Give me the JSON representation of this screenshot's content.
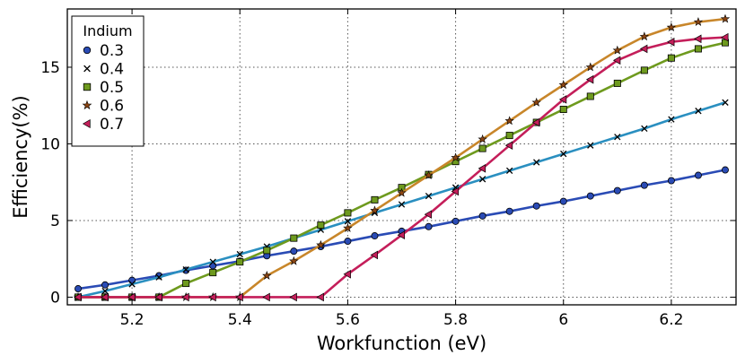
{
  "chart_data": {
    "type": "line",
    "title": "",
    "xlabel": "Workfunction (eV)",
    "ylabel": "Efficiency(%)",
    "xlim": [
      5.08,
      6.32
    ],
    "ylim": [
      -0.5,
      18.8
    ],
    "xticks": [
      5.2,
      5.4,
      5.6,
      5.8,
      6.0,
      6.2
    ],
    "xtick_labels": [
      "5.2",
      "5.4",
      "5.6",
      "5.8",
      "6",
      "6.2"
    ],
    "yticks": [
      0,
      5,
      10,
      15
    ],
    "ytick_labels": [
      "0",
      "5",
      "10",
      "15"
    ],
    "grid": true,
    "legend": {
      "title": "Indium",
      "placement": "top-left"
    },
    "x": [
      5.1,
      5.15,
      5.2,
      5.25,
      5.3,
      5.35,
      5.4,
      5.45,
      5.5,
      5.55,
      5.6,
      5.65,
      5.7,
      5.75,
      5.8,
      5.85,
      5.9,
      5.95,
      6.0,
      6.05,
      6.1,
      6.15,
      6.2,
      6.25,
      6.3
    ],
    "series": [
      {
        "name": "0.3",
        "marker": "circle",
        "line_color": "#2a4bb5",
        "marker_color": "#2a4bb5",
        "values": [
          0.55,
          0.8,
          1.1,
          1.4,
          1.75,
          2.05,
          2.35,
          2.7,
          3.0,
          3.3,
          3.65,
          4.0,
          4.3,
          4.6,
          4.95,
          5.3,
          5.6,
          5.95,
          6.25,
          6.6,
          6.95,
          7.3,
          7.6,
          7.95,
          8.3
        ]
      },
      {
        "name": "0.4",
        "marker": "x",
        "line_color": "#2a8fc0",
        "marker_color": "#000000",
        "values": [
          0.0,
          0.4,
          0.85,
          1.3,
          1.8,
          2.3,
          2.8,
          3.3,
          3.85,
          4.4,
          4.95,
          5.5,
          6.05,
          6.6,
          7.15,
          7.7,
          8.25,
          8.8,
          9.35,
          9.9,
          10.45,
          11.0,
          11.6,
          12.15,
          12.7
        ]
      },
      {
        "name": "0.5",
        "marker": "square",
        "line_color": "#6e9a1e",
        "marker_color": "#6e9a1e",
        "values": [
          0.0,
          0.0,
          0.0,
          0.0,
          0.9,
          1.6,
          2.3,
          3.05,
          3.85,
          4.7,
          5.5,
          6.35,
          7.15,
          8.0,
          8.85,
          9.7,
          10.55,
          11.4,
          12.25,
          13.1,
          13.95,
          14.8,
          15.6,
          16.2,
          16.6
        ]
      },
      {
        "name": "0.6",
        "marker": "star",
        "line_color": "#c8862a",
        "marker_color": "#8b4513",
        "values": [
          0.0,
          0.0,
          0.0,
          0.0,
          0.0,
          0.0,
          0.0,
          1.4,
          2.35,
          3.4,
          4.5,
          5.65,
          6.8,
          7.95,
          9.1,
          10.3,
          11.5,
          12.7,
          13.85,
          15.0,
          16.1,
          17.0,
          17.6,
          17.95,
          18.15
        ]
      },
      {
        "name": "0.7",
        "marker": "triangle-left",
        "line_color": "#c41e5a",
        "marker_color": "#c41e5a",
        "values": [
          0.0,
          0.0,
          0.0,
          0.0,
          0.0,
          0.0,
          0.0,
          0.0,
          0.0,
          0.0,
          1.5,
          2.75,
          4.05,
          5.4,
          6.9,
          8.4,
          9.9,
          11.4,
          12.9,
          14.2,
          15.45,
          16.2,
          16.65,
          16.85,
          16.95
        ]
      }
    ]
  }
}
